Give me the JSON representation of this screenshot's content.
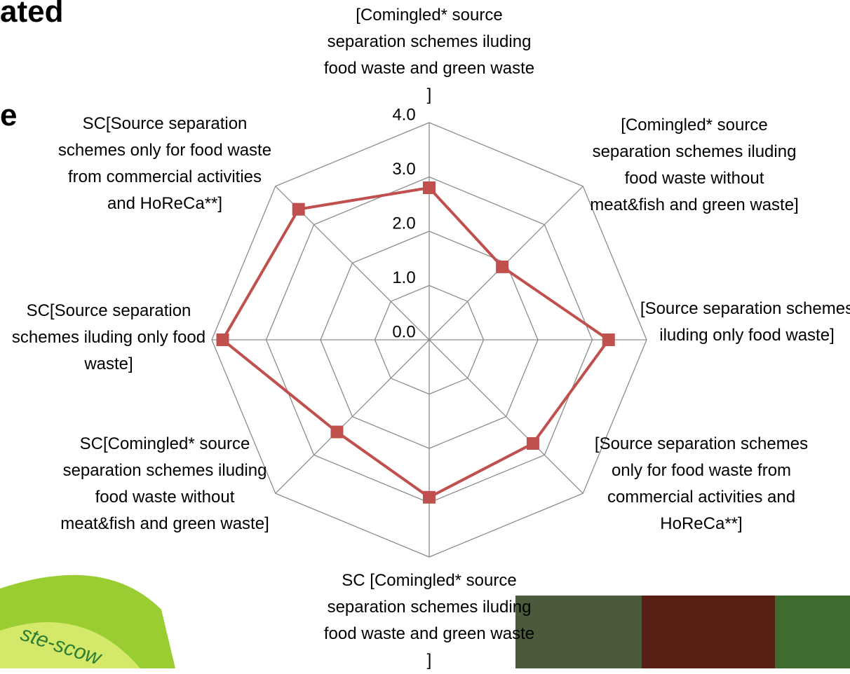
{
  "slide_text": [
    "ated",
    "e"
  ],
  "logo_text": "ste-scow",
  "chart_data": {
    "type": "radar",
    "categories": [
      "[Comingled* source separation schemes iluding food waste and green waste ]",
      "[Comingled* source separation schemes iluding food waste without meat&fish and green waste]",
      "[Source separation schemes iluding only food waste]",
      "[Source separation schemes only for food waste from commercial activities and HoReCa**]",
      "SC [Comingled* source separation schemes iluding food waste and green waste ]",
      "SC[Comingled* source separation schemes iluding food waste without meat&fish and green waste]",
      "SC[Source separation schemes iluding only food waste]",
      "SC[Source separation schemes only for food waste from commercial activities and HoReCa**]"
    ],
    "values": [
      2.8,
      1.9,
      3.3,
      2.7,
      2.9,
      2.4,
      3.8,
      3.4
    ],
    "color": "#c0504d",
    "ylim": [
      0,
      4
    ],
    "yticks": [
      {
        "value": 0,
        "label": "0.0"
      },
      {
        "value": 1,
        "label": "1.0"
      },
      {
        "value": 2,
        "label": "2.0"
      },
      {
        "value": 3,
        "label": "3.0"
      },
      {
        "value": 4,
        "label": "4.0"
      }
    ],
    "grid": true
  }
}
